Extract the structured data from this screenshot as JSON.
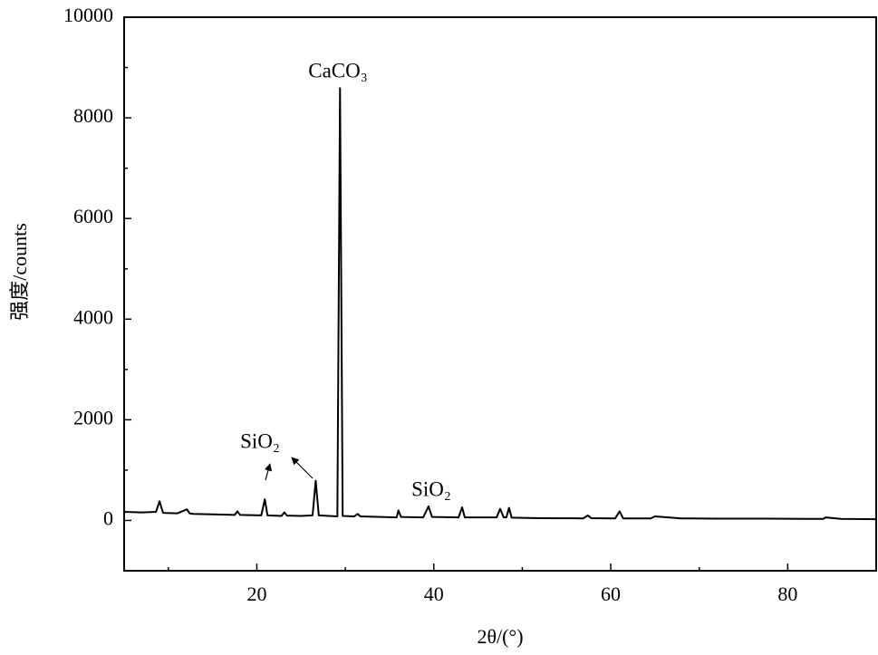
{
  "chart_data": {
    "type": "line",
    "x_label": "2θ/(°)",
    "y_label": "强度/counts",
    "xlim": [
      5,
      90
    ],
    "ylim": [
      -1000,
      10000
    ],
    "xticks": [
      20,
      40,
      60,
      80
    ],
    "xminorticks": [
      10,
      30,
      50,
      70
    ],
    "yticks": [
      0,
      2000,
      4000,
      6000,
      8000,
      10000
    ],
    "yminorticks": [
      1000,
      3000,
      5000,
      7000,
      9000
    ],
    "series": [
      {
        "color": "#000000",
        "x": [
          5,
          7,
          8.6,
          9,
          9.4,
          11,
          12.1,
          12.4,
          12.8,
          15,
          17.5,
          17.8,
          18.1,
          20.5,
          20.9,
          21.2,
          22.8,
          23.1,
          23.4,
          25,
          26.3,
          26.65,
          27,
          29.1,
          29.4,
          29.7,
          31,
          31.4,
          31.7,
          34,
          35.8,
          36,
          36.3,
          38.8,
          39.4,
          39.8,
          42.8,
          43.2,
          43.5,
          47.1,
          47.5,
          47.9,
          48.2,
          48.5,
          48.8,
          50,
          52,
          56.9,
          57.4,
          57.8,
          60.5,
          61,
          61.4,
          64.5,
          65,
          68,
          72,
          78,
          84,
          84.3,
          86,
          90
        ],
        "values": [
          170,
          160,
          170,
          380,
          150,
          140,
          220,
          140,
          130,
          120,
          110,
          180,
          110,
          100,
          420,
          100,
          90,
          160,
          95,
          90,
          100,
          790,
          100,
          80,
          8590,
          90,
          80,
          130,
          80,
          70,
          60,
          200,
          70,
          60,
          280,
          70,
          60,
          260,
          60,
          60,
          230,
          60,
          60,
          250,
          55,
          50,
          45,
          40,
          100,
          45,
          40,
          180,
          40,
          40,
          80,
          40,
          35,
          35,
          30,
          60,
          30,
          25
        ]
      }
    ],
    "annotations": [
      {
        "text": "CaCO₃"
      },
      {
        "text": "SiO₂"
      },
      {
        "text": "SiO₂"
      }
    ]
  }
}
